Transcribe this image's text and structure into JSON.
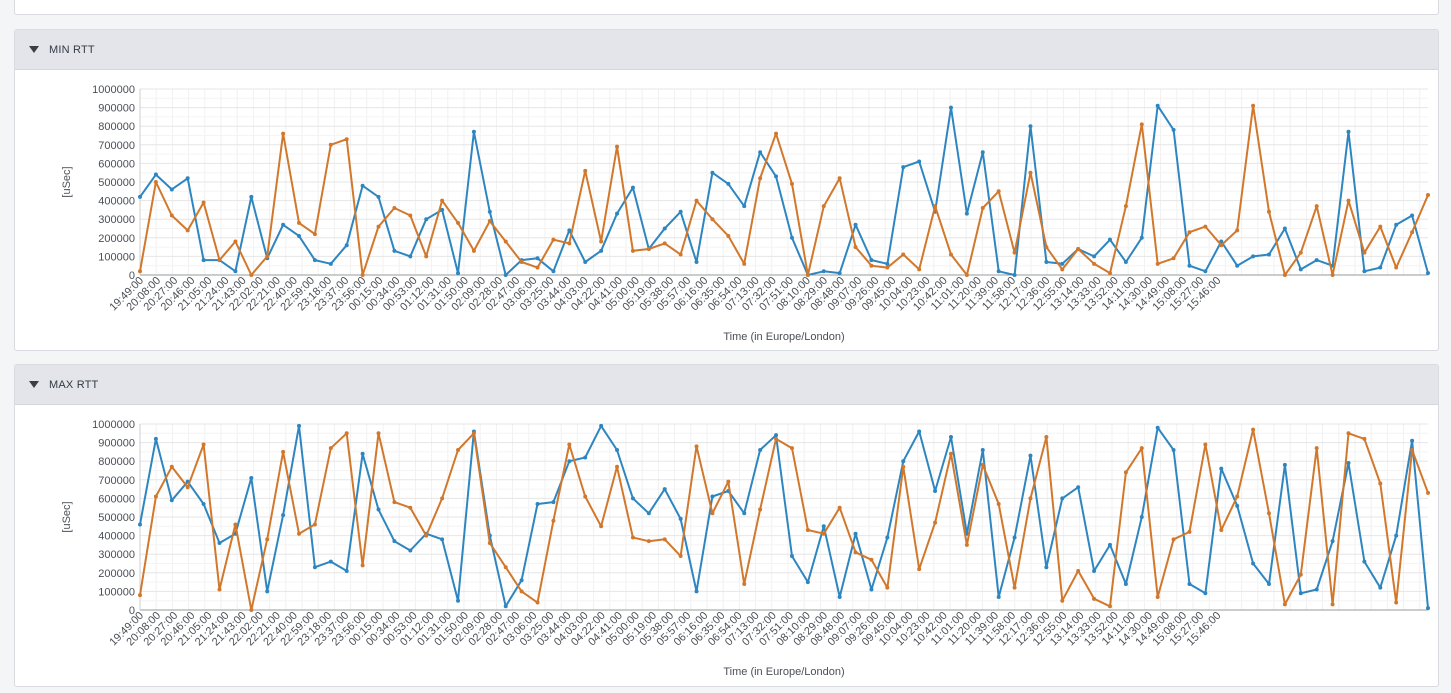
{
  "colors": {
    "series_blue": "#2e86c1",
    "series_orange": "#d2782c",
    "grid": "#ececec"
  },
  "panels": [
    {
      "title": "MIN RTT",
      "toggle_icon": "triangle-down-icon"
    },
    {
      "title": "MAX RTT",
      "toggle_icon": "triangle-down-icon"
    }
  ],
  "chart_data": [
    {
      "type": "line",
      "xlabel": "Time (in Europe/London)",
      "ylabel": "[uSec]",
      "ylim": [
        0,
        1000000
      ],
      "yticks": [
        0,
        100000,
        200000,
        300000,
        400000,
        500000,
        600000,
        700000,
        800000,
        900000,
        1000000
      ],
      "grid": true,
      "x_tick_labels": [
        "19:49:00",
        "20:08:00",
        "20:27:00",
        "20:46:00",
        "21:05:00",
        "21:24:00",
        "21:43:00",
        "22:02:00",
        "22:21:00",
        "22:40:00",
        "22:59:00",
        "23:18:00",
        "23:37:00",
        "23:56:00",
        "00:15:00",
        "00:34:00",
        "00:53:00",
        "01:12:00",
        "01:31:00",
        "01:50:00",
        "02:09:00",
        "02:28:00",
        "02:47:00",
        "03:06:00",
        "03:25:00",
        "03:44:00",
        "04:03:00",
        "04:22:00",
        "04:41:00",
        "05:00:00",
        "05:19:00",
        "05:38:00",
        "05:57:00",
        "06:16:00",
        "06:35:00",
        "06:54:00",
        "07:13:00",
        "07:32:00",
        "07:51:00",
        "08:10:00",
        "08:29:00",
        "08:48:00",
        "09:07:00",
        "09:26:00",
        "09:45:00",
        "10:04:00",
        "10:23:00",
        "10:42:00",
        "11:01:00",
        "11:20:00",
        "11:39:00",
        "11:58:00",
        "12:17:00",
        "12:36:00",
        "12:55:00",
        "13:14:00",
        "13:33:00",
        "13:52:00",
        "14:11:00",
        "14:30:00",
        "14:49:00",
        "15:08:00",
        "15:27:00",
        "15:46:00"
      ],
      "series": [
        {
          "color": "#2e86c1",
          "values": [
            420000,
            540000,
            460000,
            520000,
            80000,
            80000,
            20000,
            420000,
            90000,
            270000,
            210000,
            80000,
            60000,
            160000,
            480000,
            420000,
            130000,
            100000,
            300000,
            350000,
            10000,
            770000,
            340000,
            0,
            80000,
            90000,
            20000,
            240000,
            70000,
            130000,
            330000,
            470000,
            140000,
            250000,
            340000,
            70000,
            550000,
            490000,
            370000,
            660000,
            530000,
            200000,
            0,
            20000,
            10000,
            270000,
            80000,
            60000,
            580000,
            610000,
            340000,
            900000,
            330000,
            660000,
            20000,
            0,
            800000,
            70000,
            60000,
            140000,
            100000,
            190000,
            70000,
            200000,
            910000,
            780000,
            50000,
            20000,
            180000,
            50000,
            100000,
            110000,
            250000,
            30000,
            80000,
            50000,
            770000,
            20000,
            40000,
            270000,
            320000,
            10000
          ]
        },
        {
          "color": "#d2782c",
          "values": [
            20000,
            500000,
            320000,
            240000,
            390000,
            80000,
            180000,
            0,
            100000,
            760000,
            280000,
            220000,
            700000,
            730000,
            0,
            260000,
            360000,
            320000,
            100000,
            400000,
            280000,
            130000,
            290000,
            180000,
            70000,
            40000,
            190000,
            170000,
            560000,
            180000,
            690000,
            130000,
            140000,
            170000,
            110000,
            400000,
            300000,
            210000,
            60000,
            520000,
            760000,
            490000,
            0,
            370000,
            520000,
            150000,
            50000,
            40000,
            110000,
            30000,
            370000,
            110000,
            0,
            360000,
            450000,
            120000,
            550000,
            150000,
            30000,
            140000,
            60000,
            10000,
            370000,
            810000,
            60000,
            90000,
            230000,
            260000,
            160000,
            240000,
            910000,
            340000,
            0,
            120000,
            370000,
            0,
            400000,
            120000,
            260000,
            40000,
            230000,
            430000
          ]
        }
      ]
    },
    {
      "type": "line",
      "xlabel": "Time (in Europe/London)",
      "ylabel": "[uSec]",
      "ylim": [
        0,
        1000000
      ],
      "yticks": [
        0,
        100000,
        200000,
        300000,
        400000,
        500000,
        600000,
        700000,
        800000,
        900000,
        1000000
      ],
      "grid": true,
      "x_tick_labels": [
        "19:49:00",
        "20:08:00",
        "20:27:00",
        "20:46:00",
        "21:05:00",
        "21:24:00",
        "21:43:00",
        "22:02:00",
        "22:21:00",
        "22:40:00",
        "22:59:00",
        "23:18:00",
        "23:37:00",
        "23:56:00",
        "00:15:00",
        "00:34:00",
        "00:53:00",
        "01:12:00",
        "01:31:00",
        "01:50:00",
        "02:09:00",
        "02:28:00",
        "02:47:00",
        "03:06:00",
        "03:25:00",
        "03:44:00",
        "04:03:00",
        "04:22:00",
        "04:41:00",
        "05:00:00",
        "05:19:00",
        "05:38:00",
        "05:57:00",
        "06:16:00",
        "06:35:00",
        "06:54:00",
        "07:13:00",
        "07:32:00",
        "07:51:00",
        "08:10:00",
        "08:29:00",
        "08:48:00",
        "09:07:00",
        "09:26:00",
        "09:45:00",
        "10:04:00",
        "10:23:00",
        "10:42:00",
        "11:01:00",
        "11:20:00",
        "11:39:00",
        "11:58:00",
        "12:17:00",
        "12:36:00",
        "12:55:00",
        "13:14:00",
        "13:33:00",
        "13:52:00",
        "14:11:00",
        "14:30:00",
        "14:49:00",
        "15:08:00",
        "15:27:00",
        "15:46:00"
      ],
      "series": [
        {
          "color": "#2e86c1",
          "values": [
            460000,
            920000,
            590000,
            690000,
            570000,
            360000,
            410000,
            710000,
            100000,
            510000,
            990000,
            230000,
            260000,
            210000,
            840000,
            540000,
            370000,
            320000,
            410000,
            380000,
            50000,
            960000,
            400000,
            20000,
            160000,
            570000,
            580000,
            800000,
            820000,
            990000,
            860000,
            600000,
            520000,
            650000,
            490000,
            100000,
            610000,
            640000,
            520000,
            860000,
            940000,
            290000,
            150000,
            450000,
            70000,
            410000,
            110000,
            390000,
            800000,
            960000,
            640000,
            930000,
            410000,
            860000,
            70000,
            390000,
            830000,
            230000,
            600000,
            660000,
            210000,
            350000,
            140000,
            500000,
            980000,
            860000,
            140000,
            90000,
            760000,
            560000,
            250000,
            140000,
            780000,
            90000,
            110000,
            370000,
            790000,
            260000,
            120000,
            400000,
            910000,
            10000
          ]
        },
        {
          "color": "#d2782c",
          "values": [
            80000,
            610000,
            770000,
            660000,
            890000,
            110000,
            460000,
            0,
            380000,
            850000,
            410000,
            460000,
            870000,
            950000,
            240000,
            950000,
            580000,
            550000,
            400000,
            600000,
            860000,
            950000,
            360000,
            230000,
            100000,
            40000,
            480000,
            890000,
            610000,
            450000,
            770000,
            390000,
            370000,
            380000,
            290000,
            880000,
            520000,
            690000,
            140000,
            540000,
            920000,
            870000,
            430000,
            410000,
            550000,
            310000,
            270000,
            120000,
            770000,
            220000,
            470000,
            840000,
            350000,
            780000,
            570000,
            120000,
            600000,
            930000,
            50000,
            210000,
            60000,
            20000,
            740000,
            870000,
            70000,
            380000,
            420000,
            890000,
            430000,
            610000,
            970000,
            520000,
            30000,
            190000,
            870000,
            30000,
            950000,
            920000,
            680000,
            40000,
            860000,
            630000
          ]
        }
      ]
    }
  ]
}
